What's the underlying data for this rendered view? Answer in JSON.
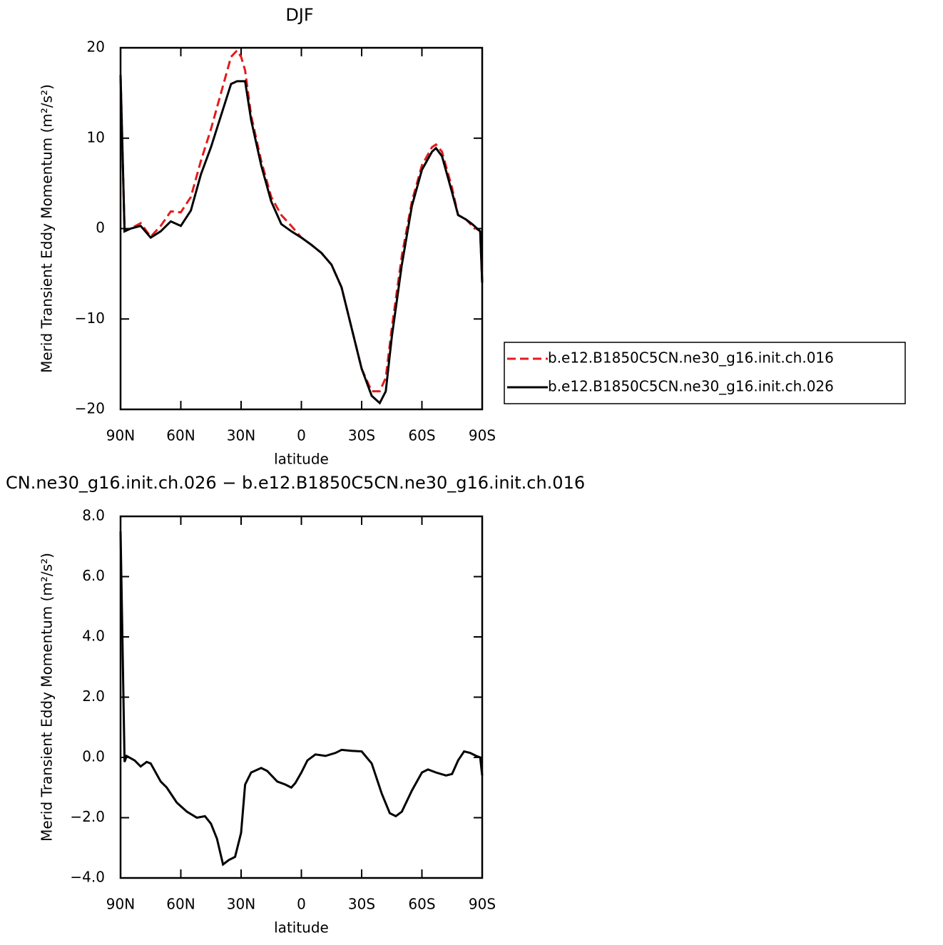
{
  "chart_data": [
    {
      "type": "line",
      "title": "DJF",
      "xlabel": "latitude",
      "ylabel": "Merid Transient Eddy Momentum (m²/s²)",
      "x": [
        90,
        88,
        85,
        80,
        75,
        70,
        65,
        60,
        55,
        50,
        45,
        40,
        35,
        32,
        30,
        28,
        25,
        20,
        15,
        10,
        5,
        0,
        -5,
        -10,
        -15,
        -20,
        -25,
        -30,
        -35,
        -39,
        -42,
        -45,
        -50,
        -55,
        -60,
        -65,
        -67,
        -70,
        -75,
        -78,
        -82,
        -85,
        -89,
        -90
      ],
      "series": [
        {
          "name": "b.e12.B1850C5CN.ne30_g16.init.ch.016",
          "color": "#e41a1c",
          "linestyle": "dashed",
          "values": [
            17,
            -0.3,
            0,
            0.6,
            -0.9,
            0.3,
            1.9,
            1.8,
            3.5,
            7.5,
            11,
            15,
            19,
            19.7,
            19,
            17.5,
            12.5,
            7.5,
            3.5,
            1.5,
            0.3,
            -1,
            -1.8,
            -2.7,
            -4,
            -6.5,
            -11,
            -15.5,
            -18,
            -18,
            -16.5,
            -11,
            -3,
            3,
            7,
            9,
            9.3,
            8.5,
            4.5,
            1.5,
            1,
            0.3,
            -0.3,
            -6
          ]
        },
        {
          "name": "b.e12.B1850C5CN.ne30_g16.init.ch.026",
          "color": "#000000",
          "linestyle": "solid",
          "values": [
            17,
            -0.3,
            0,
            0.3,
            -1,
            -0.3,
            0.8,
            0.3,
            2,
            6,
            9,
            12.5,
            16,
            16.3,
            16.3,
            16.3,
            12,
            7,
            3,
            0.5,
            -0.3,
            -1,
            -1.8,
            -2.7,
            -4,
            -6.5,
            -11,
            -15.5,
            -18.5,
            -19.3,
            -18,
            -12,
            -4,
            2.5,
            6.5,
            8.5,
            8.9,
            8,
            4,
            1.5,
            1,
            0.5,
            -0.3,
            -6
          ]
        }
      ],
      "xlim": [
        90,
        -90
      ],
      "xticks": [
        {
          "value": 90,
          "label": "90N"
        },
        {
          "value": 60,
          "label": "60N"
        },
        {
          "value": 30,
          "label": "30N"
        },
        0,
        {
          "value": -30,
          "label": "30S"
        },
        {
          "value": -60,
          "label": "60S"
        },
        {
          "value": -90,
          "label": "90S"
        }
      ],
      "ylim": [
        -20,
        20
      ],
      "yticks": [
        {
          "value": -20,
          "label": "−20"
        },
        {
          "value": -10,
          "label": "−10"
        },
        0,
        10,
        20
      ],
      "legend": "right"
    },
    {
      "type": "line",
      "title": "CN.ne30_g16.init.ch.026 − b.e12.B1850C5CN.ne30_g16.init.ch.016",
      "xlabel": "latitude",
      "ylabel": "Merid Transient Eddy Momentum (m²/s²)",
      "x": [
        90,
        88,
        87,
        83,
        80,
        77,
        75,
        70,
        67,
        62,
        57,
        52,
        48,
        45,
        42,
        39,
        36,
        33,
        30,
        28,
        25,
        20,
        17,
        12,
        8,
        5,
        3,
        0,
        -3,
        -7,
        -12,
        -17,
        -20,
        -25,
        -30,
        -35,
        -40,
        -44,
        -47,
        -50,
        -55,
        -60,
        -63,
        -67,
        -72,
        -75,
        -78,
        -81,
        -84,
        -87,
        -89,
        -90
      ],
      "series": [
        {
          "color": "#000000",
          "linestyle": "solid",
          "values": [
            7.5,
            -0.15,
            0.05,
            -0.1,
            -0.3,
            -0.15,
            -0.2,
            -0.8,
            -1.0,
            -1.5,
            -1.8,
            -2.0,
            -1.95,
            -2.2,
            -2.7,
            -3.55,
            -3.4,
            -3.3,
            -2.5,
            -0.9,
            -0.5,
            -0.35,
            -0.45,
            -0.8,
            -0.9,
            -1.0,
            -0.85,
            -0.5,
            -0.1,
            0.1,
            0.05,
            0.15,
            0.25,
            0.22,
            0.2,
            -0.2,
            -1.2,
            -1.85,
            -1.95,
            -1.8,
            -1.1,
            -0.5,
            -0.4,
            -0.5,
            -0.6,
            -0.55,
            -0.1,
            0.2,
            0.15,
            0.05,
            0,
            -0.6
          ]
        }
      ],
      "xlim": [
        90,
        -90
      ],
      "xticks": [
        {
          "value": 90,
          "label": "90N"
        },
        {
          "value": 60,
          "label": "60N"
        },
        {
          "value": 30,
          "label": "30N"
        },
        0,
        {
          "value": -30,
          "label": "30S"
        },
        {
          "value": -60,
          "label": "60S"
        },
        {
          "value": -90,
          "label": "90S"
        }
      ],
      "ylim": [
        -4,
        8
      ],
      "yticks": [
        {
          "value": -4,
          "label": "−4.0"
        },
        {
          "value": -2,
          "label": "−2.0"
        },
        {
          "value": 0,
          "label": "0.0"
        },
        {
          "value": 2,
          "label": "2.0"
        },
        {
          "value": 4,
          "label": "4.0"
        },
        {
          "value": 6,
          "label": "6.0"
        },
        {
          "value": 8,
          "label": "8.0"
        }
      ]
    }
  ]
}
